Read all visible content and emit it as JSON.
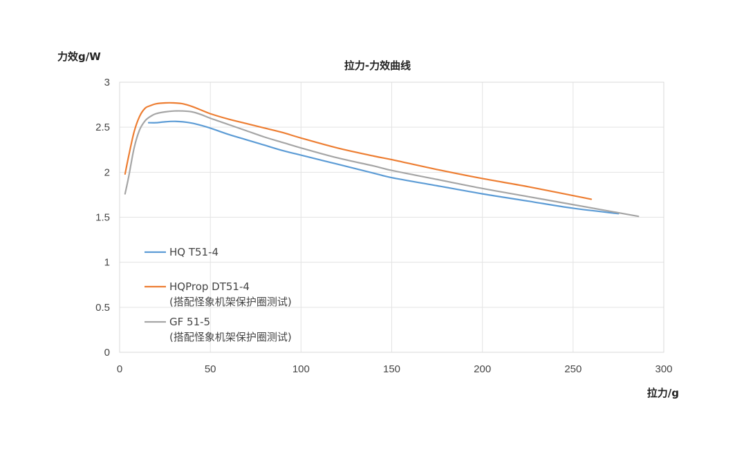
{
  "chart_data": {
    "type": "line",
    "title": "拉力-力效曲线",
    "xlabel": "拉力/g",
    "ylabel": "力效g/W",
    "xlim": [
      0,
      300
    ],
    "ylim": [
      0,
      3
    ],
    "xticks": [
      "0",
      "50",
      "100",
      "150",
      "200",
      "250",
      "300"
    ],
    "yticks": [
      "0",
      "0.5",
      "1",
      "1.5",
      "2",
      "2.5",
      "3"
    ],
    "grid": true,
    "legend_position": "bottom-left",
    "series": [
      {
        "name": "HQ T51-4",
        "color": "#5b9bd5",
        "x": [
          16,
          20,
          25,
          30,
          35,
          40,
          45,
          50,
          60,
          70,
          80,
          90,
          100,
          120,
          140,
          150,
          175,
          200,
          225,
          250,
          275
        ],
        "y": [
          2.55,
          2.55,
          2.56,
          2.565,
          2.56,
          2.545,
          2.52,
          2.49,
          2.42,
          2.36,
          2.3,
          2.24,
          2.19,
          2.09,
          1.99,
          1.94,
          1.85,
          1.76,
          1.68,
          1.6,
          1.54
        ]
      },
      {
        "name": "HQProp DT51-4",
        "name_line2": "(搭配怪象机架保护圈测试)",
        "color": "#ed7d31",
        "x": [
          3,
          5,
          8,
          11,
          14,
          17,
          20,
          25,
          30,
          35,
          40,
          45,
          50,
          60,
          70,
          80,
          90,
          100,
          120,
          140,
          150,
          175,
          200,
          225,
          260
        ],
        "y": [
          1.98,
          2.18,
          2.45,
          2.62,
          2.71,
          2.74,
          2.76,
          2.77,
          2.77,
          2.76,
          2.73,
          2.69,
          2.65,
          2.59,
          2.54,
          2.49,
          2.44,
          2.38,
          2.27,
          2.18,
          2.14,
          2.03,
          1.93,
          1.84,
          1.7
        ]
      },
      {
        "name": "GF 51-5",
        "name_line2": "(搭配怪象机架保护圈测试)",
        "color": "#a5a5a5",
        "x": [
          3,
          5,
          8,
          11,
          14,
          17,
          20,
          25,
          30,
          35,
          40,
          45,
          50,
          60,
          70,
          80,
          90,
          100,
          120,
          140,
          150,
          175,
          200,
          225,
          250,
          286
        ],
        "y": [
          1.76,
          1.95,
          2.27,
          2.47,
          2.57,
          2.62,
          2.65,
          2.67,
          2.68,
          2.68,
          2.67,
          2.64,
          2.6,
          2.53,
          2.46,
          2.39,
          2.33,
          2.27,
          2.16,
          2.07,
          2.02,
          1.92,
          1.82,
          1.73,
          1.64,
          1.51
        ]
      }
    ]
  }
}
